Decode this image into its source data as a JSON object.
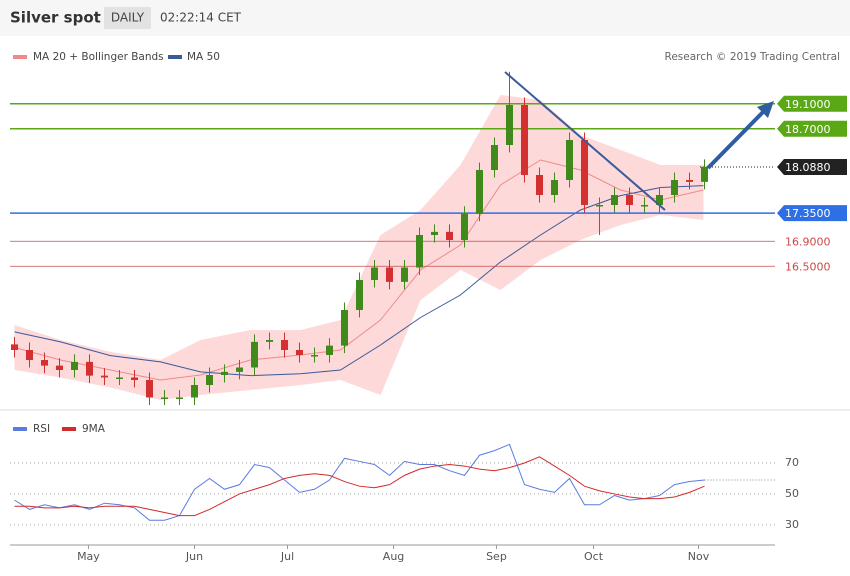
{
  "chart_data": {
    "type": "candlestick",
    "title": "Silver spot",
    "period": "DAILY",
    "time": "02:22:14 CET",
    "credit": "Research © 2019 Trading Central",
    "xlim": [
      -0.3,
      50.7
    ],
    "xticks": [
      {
        "value": 4.93,
        "label": "May"
      },
      {
        "value": 12,
        "label": "Jun"
      },
      {
        "value": 18.2,
        "label": "Jul"
      },
      {
        "value": 25.27,
        "label": "Aug"
      },
      {
        "value": 32.13,
        "label": "Sep"
      },
      {
        "value": 38.6,
        "label": "Oct"
      },
      {
        "value": 45.6,
        "label": "Nov"
      }
    ],
    "ylim": [
      14.2,
      20.2
    ],
    "candles": {
      "up_color": "#3f8a1a",
      "down_color": "#d43030",
      "open": [
        15.25,
        15.16,
        15.0,
        14.91,
        14.84,
        14.97,
        14.75,
        14.72,
        14.72,
        14.68,
        14.4,
        14.4,
        14.4,
        14.6,
        14.76,
        14.81,
        14.88,
        15.29,
        15.32,
        15.16,
        15.08,
        15.08,
        15.23,
        15.8,
        16.28,
        16.48,
        16.25,
        16.48,
        17.0,
        17.05,
        16.92,
        17.34,
        18.04,
        18.44,
        19.08,
        17.96,
        17.64,
        17.88,
        18.52,
        17.48,
        17.48,
        17.64,
        17.48,
        17.48,
        17.64,
        17.88,
        17.85
      ],
      "high": [
        15.37,
        15.28,
        15.12,
        15.03,
        15.09,
        15.09,
        14.87,
        14.84,
        14.84,
        14.8,
        14.52,
        14.52,
        14.72,
        14.88,
        14.93,
        15.0,
        15.41,
        15.44,
        15.44,
        15.28,
        15.2,
        15.35,
        15.92,
        16.4,
        16.6,
        16.6,
        16.6,
        17.12,
        17.17,
        17.17,
        17.46,
        18.16,
        18.56,
        19.61,
        19.2,
        18.08,
        18.0,
        18.64,
        18.64,
        17.6,
        17.76,
        17.76,
        17.6,
        17.76,
        18.0,
        18.0,
        18.21
      ],
      "low": [
        15.04,
        14.88,
        14.79,
        14.72,
        14.72,
        14.63,
        14.6,
        14.6,
        14.56,
        14.28,
        14.28,
        14.28,
        14.28,
        14.48,
        14.64,
        14.69,
        14.76,
        15.17,
        15.04,
        14.96,
        14.96,
        14.96,
        15.11,
        15.68,
        16.16,
        16.13,
        16.13,
        16.36,
        16.88,
        16.8,
        16.8,
        17.22,
        17.92,
        18.32,
        17.84,
        17.52,
        17.52,
        17.76,
        17.36,
        17.0,
        17.36,
        17.36,
        17.36,
        17.36,
        17.52,
        17.73,
        17.73
      ],
      "close": [
        15.16,
        15.0,
        14.91,
        14.84,
        14.97,
        14.75,
        14.72,
        14.72,
        14.68,
        14.4,
        14.4,
        14.4,
        14.6,
        14.76,
        14.81,
        14.88,
        15.29,
        15.32,
        15.16,
        15.08,
        15.08,
        15.23,
        15.8,
        16.28,
        16.48,
        16.25,
        16.48,
        17.0,
        17.05,
        16.92,
        17.34,
        18.04,
        18.44,
        19.08,
        17.96,
        17.64,
        17.88,
        18.52,
        17.48,
        17.48,
        17.64,
        17.48,
        17.48,
        17.64,
        17.88,
        17.85,
        18.09
      ]
    },
    "indicators": {
      "x": [
        0,
        3.07,
        6.4,
        9.73,
        12.4,
        15.73,
        19.07,
        21.73,
        24.4,
        27.07,
        29.73,
        32.4,
        35.07,
        37.73,
        40.4,
        43.07,
        45.93
      ],
      "bollinger": {
        "name": "MA 20 + Bollinger Bands",
        "color": "#f08a8a",
        "band_color": "#fdd9d9",
        "upper": [
          15.56,
          15.32,
          15.13,
          15.0,
          15.32,
          15.48,
          15.48,
          15.64,
          17.0,
          17.4,
          18.12,
          19.24,
          19.16,
          18.6,
          18.36,
          18.12,
          18.12
        ],
        "ma": [
          15.2,
          15.0,
          14.84,
          14.68,
          14.76,
          15.0,
          15.08,
          15.16,
          15.64,
          16.44,
          16.84,
          17.8,
          18.2,
          18.04,
          17.72,
          17.56,
          17.72
        ],
        "lower": [
          14.84,
          14.72,
          14.56,
          14.36,
          14.44,
          14.52,
          14.6,
          14.68,
          14.44,
          15.96,
          16.44,
          16.12,
          16.6,
          16.92,
          17.16,
          17.32,
          17.24
        ]
      },
      "ma50": {
        "name": "MA 50",
        "color": "#3a5a9a",
        "values": [
          15.45,
          15.29,
          15.07,
          14.97,
          14.81,
          14.75,
          14.78,
          14.84,
          15.24,
          15.68,
          16.04,
          16.57,
          17.0,
          17.4,
          17.63,
          17.76,
          17.79
        ]
      }
    },
    "levels": [
      {
        "value": 19.1,
        "label": "19.1000",
        "color": "#5aa815",
        "box": true,
        "line": "solid"
      },
      {
        "value": 18.7,
        "label": "18.7000",
        "color": "#5aa815",
        "box": true,
        "line": "solid"
      },
      {
        "value": 18.088,
        "label": "18.0880",
        "color": "#222222",
        "box": true,
        "line": "dotted"
      },
      {
        "value": 17.35,
        "label": "17.3500",
        "color": "#2f6fe4",
        "box": true,
        "line": "solid"
      },
      {
        "value": 16.9,
        "label": "16.9000",
        "color": "#c94a4a",
        "box": false,
        "line": "solid"
      },
      {
        "value": 16.5,
        "label": "16.5000",
        "color": "#c94a4a",
        "box": false,
        "line": "solid"
      }
    ],
    "rsi": {
      "ylim": [
        17,
        101
      ],
      "yticks": [
        30,
        50,
        70
      ],
      "series": [
        {
          "name": "RSI",
          "color": "#5b7be0",
          "values": [
            46,
            40,
            43,
            41,
            43,
            40,
            44,
            43,
            41,
            33,
            33,
            36,
            53,
            60,
            53,
            56,
            69,
            67,
            59,
            51,
            53,
            59,
            73,
            71,
            69,
            62,
            71,
            69,
            69,
            65,
            62,
            75,
            78,
            82,
            56,
            53,
            51,
            60,
            43,
            43,
            49,
            46,
            47,
            49,
            56,
            58,
            59
          ]
        },
        {
          "name": "9MA",
          "color": "#d42a2a",
          "values": [
            42,
            42,
            41,
            41,
            42,
            41,
            42,
            42,
            42,
            40,
            38,
            36,
            36,
            40,
            45,
            50,
            53,
            56,
            60,
            62,
            63,
            62,
            58,
            55,
            54,
            56,
            62,
            66,
            68,
            69,
            68,
            66,
            65,
            67,
            70,
            74,
            68,
            62,
            55,
            52,
            50,
            48,
            47,
            47,
            48,
            51,
            55
          ]
        }
      ]
    }
  }
}
